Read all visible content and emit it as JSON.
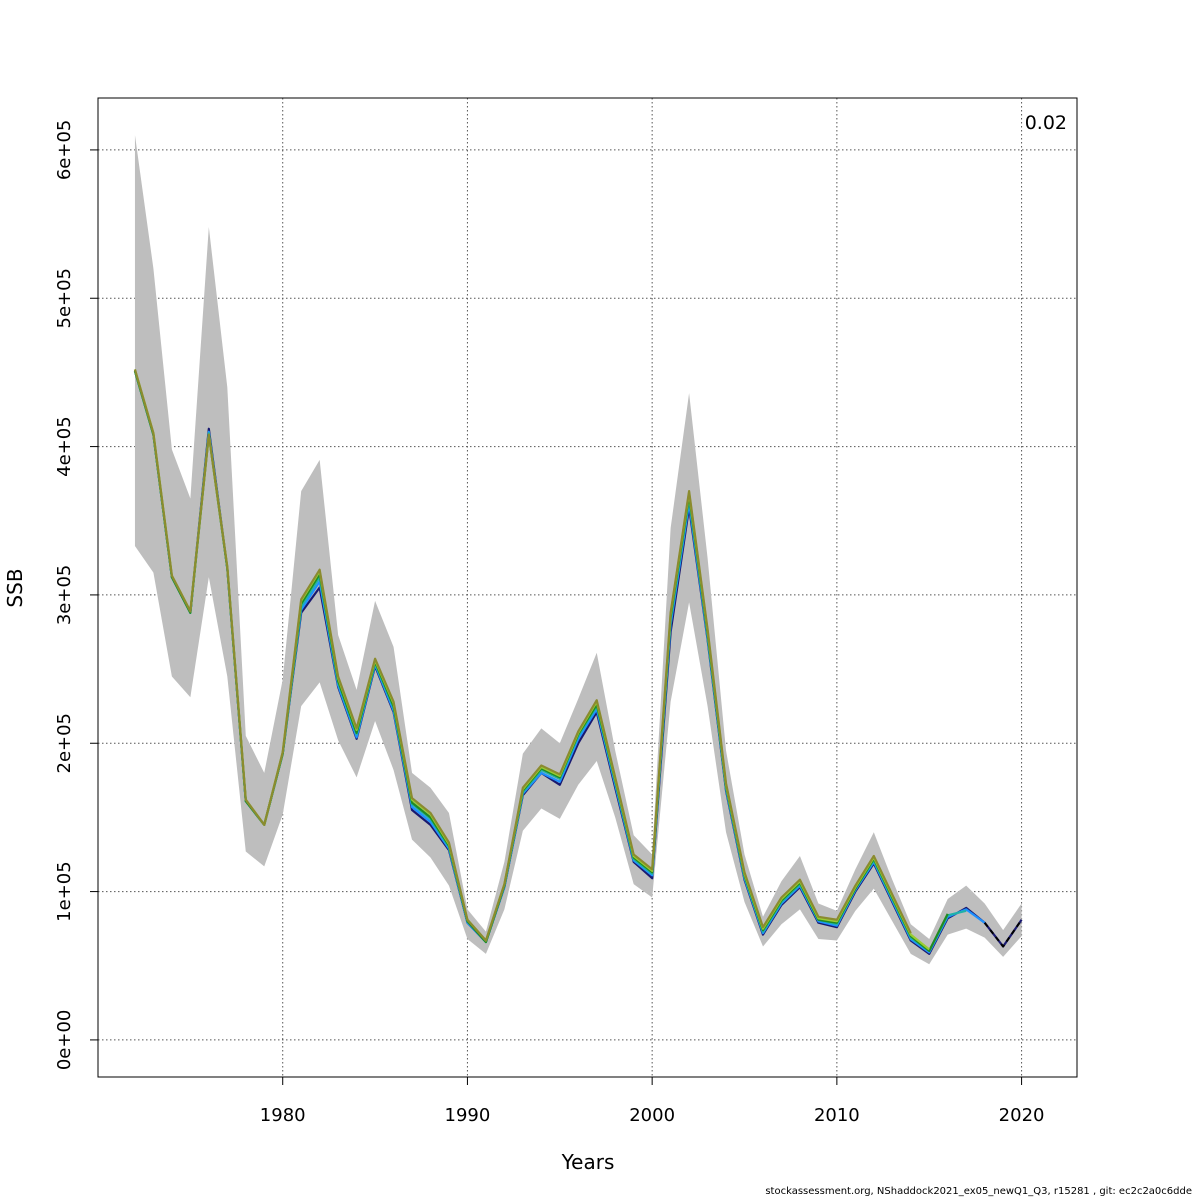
{
  "chart_data": {
    "type": "line",
    "xlabel": "Years",
    "ylabel": "SSB",
    "corner_label": "0.02",
    "xlim": [
      1970,
      2023
    ],
    "ylim": [
      -25000,
      635000
    ],
    "x_ticks": [
      1980,
      1990,
      2000,
      2010,
      2020
    ],
    "x_tick_labels": [
      "1980",
      "1990",
      "2000",
      "2010",
      "2020"
    ],
    "y_ticks": [
      0,
      100000,
      200000,
      300000,
      400000,
      500000,
      600000
    ],
    "y_tick_labels": [
      "0e+00",
      "1e+05",
      "2e+05",
      "3e+05",
      "4e+05",
      "5e+05",
      "6e+05"
    ],
    "grid": true,
    "band": {
      "color": "#bebebe",
      "x": [
        1972,
        1973,
        1974,
        1975,
        1976,
        1977,
        1978,
        1979,
        1980,
        1981,
        1982,
        1983,
        1984,
        1985,
        1986,
        1987,
        1988,
        1989,
        1990,
        1991,
        1992,
        1993,
        1994,
        1995,
        1996,
        1997,
        1998,
        1999,
        2000,
        2001,
        2002,
        2003,
        2004,
        2005,
        2006,
        2007,
        2008,
        2009,
        2010,
        2011,
        2012,
        2013,
        2014,
        2015,
        2016,
        2017,
        2018,
        2019,
        2020
      ],
      "upper": [
        610000,
        520000,
        398000,
        365000,
        548000,
        440000,
        205000,
        180000,
        243000,
        370000,
        391000,
        273000,
        236000,
        296000,
        265000,
        180000,
        170000,
        153000,
        88000,
        73000,
        120000,
        193000,
        210000,
        200000,
        230000,
        261000,
        195000,
        138000,
        125000,
        345000,
        436000,
        325000,
        195000,
        125000,
        83000,
        107000,
        124000,
        92000,
        87000,
        115000,
        140000,
        108000,
        78000,
        68000,
        95000,
        104000,
        92000,
        74000,
        92000
      ],
      "lower": [
        333000,
        315000,
        245000,
        231000,
        312000,
        245000,
        127000,
        117000,
        152000,
        225000,
        241000,
        202000,
        177000,
        215000,
        182000,
        135000,
        123000,
        104000,
        68000,
        58000,
        88000,
        141000,
        156000,
        149000,
        172000,
        188000,
        150000,
        105000,
        96000,
        228000,
        295000,
        225000,
        140000,
        93000,
        63000,
        78000,
        88000,
        68000,
        67000,
        87000,
        102000,
        80000,
        58000,
        51000,
        71000,
        75000,
        69000,
        56000,
        70000
      ]
    },
    "series": [
      {
        "color": "#191970",
        "x": [
          1972,
          1973,
          1974,
          1975,
          1976,
          1977,
          1978,
          1979,
          1980,
          1981,
          1982,
          1983,
          1984,
          1985,
          1986,
          1987,
          1988,
          1989,
          1990,
          1991,
          1992,
          1993,
          1994,
          1995,
          1996,
          1997,
          1998,
          1999,
          2000,
          2001,
          2002,
          2003,
          2004,
          2005,
          2006,
          2007,
          2008,
          2009,
          2010,
          2011,
          2012,
          2013,
          2014,
          2015,
          2016,
          2017,
          2018,
          2019,
          2020
        ],
        "values": [
          451000,
          408000,
          312000,
          288000,
          412000,
          318000,
          161000,
          145000,
          193000,
          288000,
          305000,
          238000,
          203000,
          252000,
          221000,
          155000,
          145000,
          128000,
          79000,
          66000,
          103000,
          165000,
          180000,
          172000,
          200000,
          221000,
          170000,
          120000,
          109000,
          275000,
          359000,
          270000,
          168000,
          108000,
          71000,
          91000,
          103000,
          79000,
          76000,
          100000,
          119000,
          93000,
          67000,
          58000,
          82000,
          89000,
          79000,
          63000,
          81000
        ]
      },
      {
        "color": "#1e90ff",
        "x": [
          1972,
          1973,
          1974,
          1975,
          1976,
          1977,
          1978,
          1979,
          1980,
          1981,
          1982,
          1983,
          1984,
          1985,
          1986,
          1987,
          1988,
          1989,
          1990,
          1991,
          1992,
          1993,
          1994,
          1995,
          1996,
          1997,
          1998,
          1999,
          2000,
          2001,
          2002,
          2003,
          2004,
          2005,
          2006,
          2007,
          2008,
          2009,
          2010,
          2011,
          2012,
          2013,
          2014,
          2015,
          2016,
          2017,
          2018
        ],
        "values": [
          451000,
          408000,
          312000,
          288000,
          410000,
          318000,
          161000,
          145000,
          193000,
          290000,
          309000,
          239000,
          204000,
          253000,
          222000,
          157000,
          147000,
          129000,
          79000,
          66000,
          103000,
          166000,
          180000,
          174000,
          203000,
          223000,
          172000,
          121000,
          111000,
          280000,
          362000,
          271000,
          169000,
          109000,
          72000,
          92000,
          104000,
          80000,
          77000,
          101000,
          120000,
          94000,
          68000,
          59000,
          83000,
          88000,
          79000
        ]
      },
      {
        "color": "#20b2aa",
        "x": [
          1972,
          1973,
          1974,
          1975,
          1976,
          1977,
          1978,
          1979,
          1980,
          1981,
          1982,
          1983,
          1984,
          1985,
          1986,
          1987,
          1988,
          1989,
          1990,
          1991,
          1992,
          1993,
          1994,
          1995,
          1996,
          1997,
          1998,
          1999,
          2000,
          2001,
          2002,
          2003,
          2004,
          2005,
          2006,
          2007,
          2008,
          2009,
          2010,
          2011,
          2012,
          2013,
          2014,
          2015,
          2016,
          2017
        ],
        "values": [
          451000,
          408000,
          312000,
          288000,
          409000,
          318000,
          161000,
          145000,
          193000,
          292000,
          312000,
          241000,
          206000,
          254000,
          224000,
          159000,
          149000,
          130000,
          80000,
          66000,
          104000,
          167000,
          182000,
          176000,
          205000,
          225000,
          174000,
          122000,
          112000,
          283000,
          365000,
          273000,
          170000,
          110000,
          73000,
          93000,
          105000,
          81000,
          78000,
          102000,
          121000,
          95000,
          69000,
          60000,
          84000,
          87000
        ]
      },
      {
        "color": "#228b22",
        "x": [
          1972,
          1973,
          1974,
          1975,
          1976,
          1977,
          1978,
          1979,
          1980,
          1981,
          1982,
          1983,
          1984,
          1985,
          1986,
          1987,
          1988,
          1989,
          1990,
          1991,
          1992,
          1993,
          1994,
          1995,
          1996,
          1997,
          1998,
          1999,
          2000,
          2001,
          2002,
          2003,
          2004,
          2005,
          2006,
          2007,
          2008,
          2009,
          2010,
          2011,
          2012,
          2013,
          2014,
          2015,
          2016
        ],
        "values": [
          451000,
          408000,
          312000,
          288000,
          408000,
          318000,
          161000,
          145000,
          193000,
          294000,
          314000,
          242000,
          207000,
          255000,
          225000,
          160000,
          150000,
          131000,
          80000,
          66000,
          104000,
          168000,
          183000,
          177000,
          206000,
          226000,
          175000,
          123000,
          113000,
          285000,
          367000,
          274000,
          171000,
          111000,
          74000,
          94000,
          106000,
          81000,
          79000,
          102000,
          122000,
          96000,
          70000,
          60000,
          85000
        ]
      },
      {
        "color": "#9acd32",
        "x": [
          1972,
          1973,
          1974,
          1975,
          1976,
          1977,
          1978,
          1979,
          1980,
          1981,
          1982,
          1983,
          1984,
          1985,
          1986,
          1987,
          1988,
          1989,
          1990,
          1991,
          1992,
          1993,
          1994,
          1995,
          1996,
          1997,
          1998,
          1999,
          2000,
          2001,
          2002,
          2003,
          2004,
          2005,
          2006,
          2007,
          2008,
          2009,
          2010,
          2011,
          2012,
          2013,
          2014,
          2015
        ],
        "values": [
          452000,
          409000,
          313000,
          289000,
          408000,
          319000,
          162000,
          145000,
          194000,
          296000,
          316000,
          244000,
          209000,
          256000,
          227000,
          162000,
          152000,
          132000,
          81000,
          67000,
          105000,
          169000,
          184000,
          178000,
          207000,
          228000,
          176000,
          124000,
          114000,
          287000,
          369000,
          276000,
          172000,
          112000,
          75000,
          95000,
          107000,
          82000,
          80000,
          103000,
          123000,
          97000,
          71000,
          61000
        ]
      },
      {
        "color": "#8b8b2f",
        "x": [
          1972,
          1973,
          1974,
          1975,
          1976,
          1977,
          1978,
          1979,
          1980,
          1981,
          1982,
          1983,
          1984,
          1985,
          1986,
          1987,
          1988,
          1989,
          1990,
          1991,
          1992,
          1993,
          1994,
          1995,
          1996,
          1997,
          1998,
          1999,
          2000,
          2001,
          2002,
          2003,
          2004,
          2005,
          2006,
          2007,
          2008,
          2009,
          2010,
          2011,
          2012,
          2013,
          2014
        ],
        "values": [
          452000,
          409000,
          313000,
          289000,
          408000,
          319000,
          162000,
          145000,
          194000,
          297000,
          317000,
          245000,
          210000,
          257000,
          228000,
          163000,
          153000,
          133000,
          81000,
          67000,
          105000,
          170000,
          185000,
          179000,
          208000,
          229000,
          177000,
          125000,
          115000,
          288000,
          370000,
          277000,
          173000,
          113000,
          76000,
          96000,
          108000,
          83000,
          81000,
          104000,
          124000,
          98000,
          72000
        ]
      },
      {
        "color": "#000000",
        "dashed": true,
        "x": [
          2018,
          2019,
          2020
        ],
        "values": [
          79000,
          63000,
          81000
        ]
      }
    ]
  },
  "footer": "stockassessment.org, NShaddock2021_ex05_newQ1_Q3, r15281 , git: ec2c2a0c6dde"
}
